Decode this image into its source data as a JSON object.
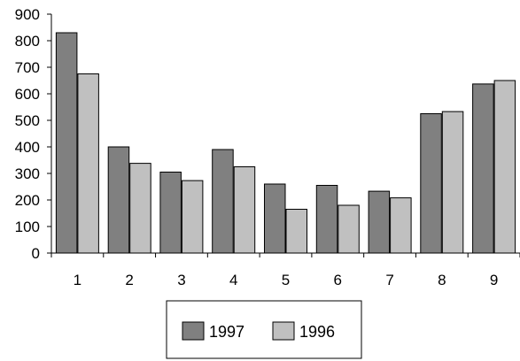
{
  "chart_data": {
    "type": "bar",
    "categories": [
      "1",
      "2",
      "3",
      "4",
      "5",
      "6",
      "7",
      "8",
      "9"
    ],
    "series": [
      {
        "name": "1997",
        "color": "#808080",
        "values": [
          830,
          400,
          305,
          390,
          260,
          255,
          233,
          525,
          637
        ]
      },
      {
        "name": "1996",
        "color": "#c0c0c0",
        "values": [
          675,
          338,
          273,
          325,
          165,
          180,
          208,
          533,
          650
        ]
      }
    ],
    "yticks": [
      "0",
      "100",
      "200",
      "300",
      "400",
      "500",
      "600",
      "700",
      "800",
      "900"
    ],
    "ylim": [
      0,
      900
    ],
    "grid": false,
    "legend_position": "bottom"
  }
}
